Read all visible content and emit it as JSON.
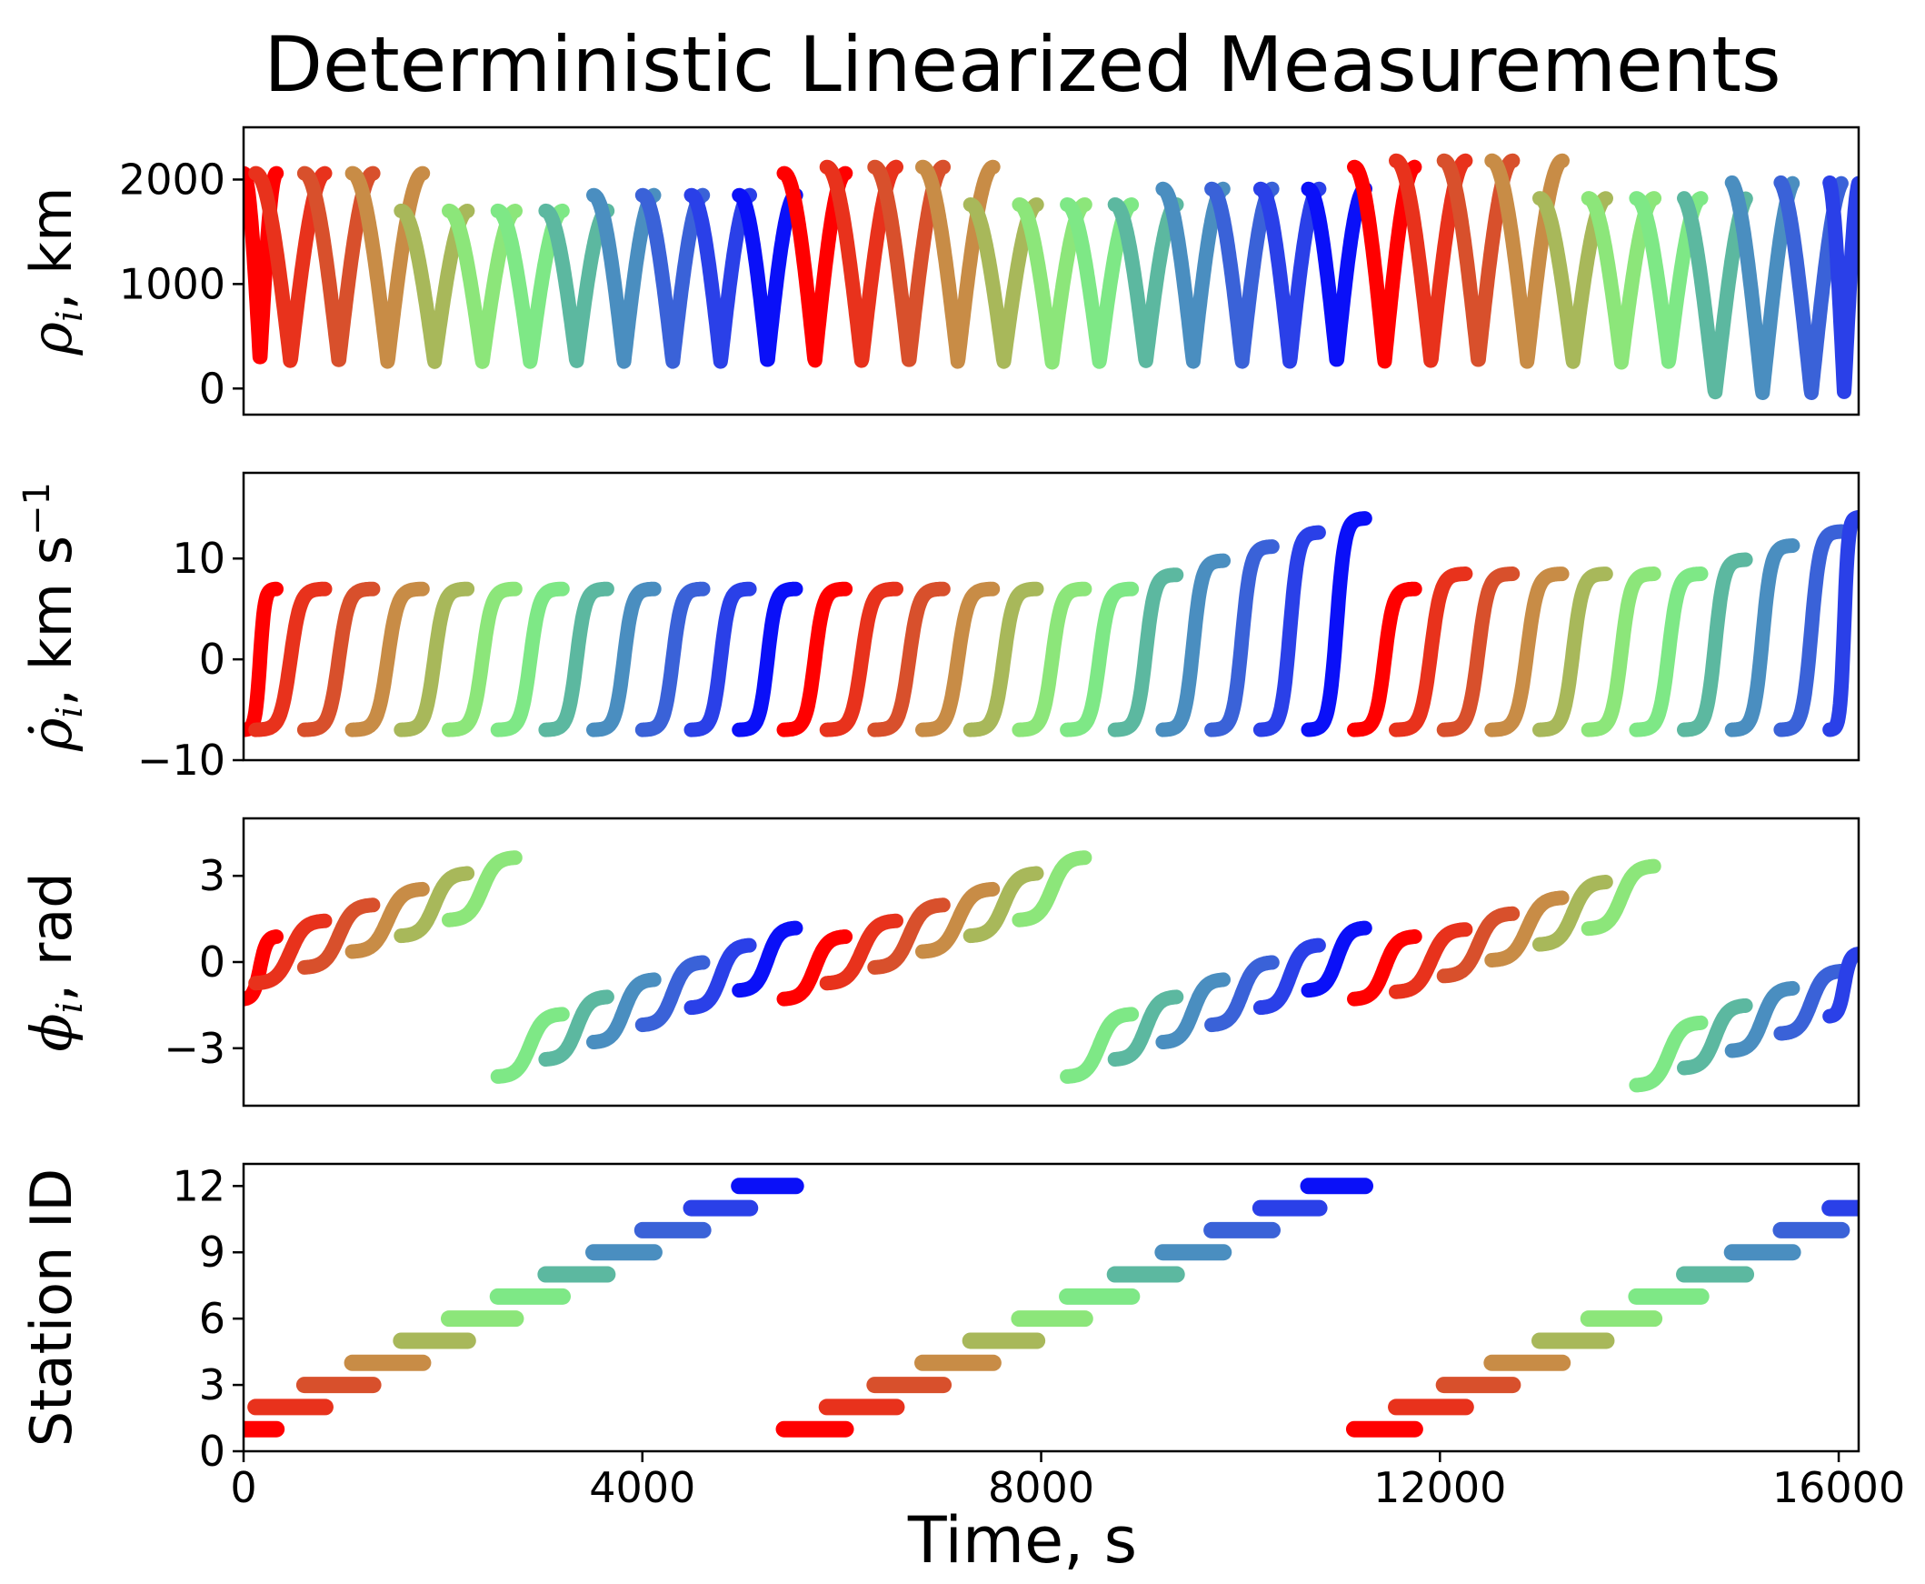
{
  "chart_data": {
    "type": "scatter",
    "title": "Deterministic Linearized Measurements",
    "xlabel": "Time, s",
    "xlim": [
      0,
      16200
    ],
    "xticks": [
      "0",
      "4000",
      "8000",
      "12000",
      "16000"
    ],
    "period_s": 5700,
    "stations": [
      {
        "id": 1,
        "color": "#ff0000"
      },
      {
        "id": 2,
        "color": "#e8321c"
      },
      {
        "id": 3,
        "color": "#d8502c"
      },
      {
        "id": 4,
        "color": "#c88c46"
      },
      {
        "id": 5,
        "color": "#a8b85a"
      },
      {
        "id": 6,
        "color": "#8ce67a"
      },
      {
        "id": 7,
        "color": "#7ee886"
      },
      {
        "id": 8,
        "color": "#5cb8a0"
      },
      {
        "id": 9,
        "color": "#4a8ec0"
      },
      {
        "id": 10,
        "color": "#3a62d8"
      },
      {
        "id": 11,
        "color": "#2a40e8"
      },
      {
        "id": 12,
        "color": "#0a10f8"
      }
    ],
    "panels": [
      {
        "key": "rho",
        "ylabel": {
          "sym": "ρ",
          "sub": "i",
          "tail": ", km"
        },
        "ylim": [
          -250,
          2500
        ],
        "yticks": [
          {
            "v": 0,
            "t": "0"
          },
          {
            "v": 1000,
            "t": "1000"
          },
          {
            "v": 2000,
            "t": "2000"
          }
        ]
      },
      {
        "key": "rhodot",
        "ylabel": {
          "sym": "ρ̇",
          "sub": "i",
          "tail": ", km s",
          "sup": "−1"
        },
        "ylim": [
          -10,
          18.5
        ],
        "yticks": [
          {
            "v": -10,
            "t": "−10"
          },
          {
            "v": 0,
            "t": "0"
          },
          {
            "v": 10,
            "t": "10"
          }
        ]
      },
      {
        "key": "phi",
        "ylabel": {
          "sym": "ϕ",
          "sub": "i",
          "tail": ", rad"
        },
        "ylim": [
          -5,
          5
        ],
        "yticks": [
          {
            "v": -3,
            "t": "−3"
          },
          {
            "v": 0,
            "t": "0"
          },
          {
            "v": 3,
            "t": "3"
          }
        ]
      },
      {
        "key": "id",
        "ylabel": {
          "sym": "",
          "sub": "",
          "tail": "Station ID"
        },
        "ylim": [
          0,
          13
        ],
        "yticks": [
          {
            "v": 0,
            "t": "0"
          },
          {
            "v": 3,
            "t": "3"
          },
          {
            "v": 6,
            "t": "6"
          },
          {
            "v": 9,
            "t": "9"
          },
          {
            "v": 12,
            "t": "12"
          }
        ]
      }
    ],
    "station_id_segments": [
      {
        "id": 1,
        "x": [
          0,
          330
        ]
      },
      {
        "id": 2,
        "x": [
          120,
          820
        ]
      },
      {
        "id": 3,
        "x": [
          610,
          1300
        ]
      },
      {
        "id": 4,
        "x": [
          1090,
          1800
        ]
      },
      {
        "id": 5,
        "x": [
          1580,
          2250
        ]
      },
      {
        "id": 6,
        "x": [
          2060,
          2730
        ]
      },
      {
        "id": 7,
        "x": [
          2550,
          3200
        ]
      },
      {
        "id": 8,
        "x": [
          3030,
          3650
        ]
      },
      {
        "id": 9,
        "x": [
          3510,
          4120
        ]
      },
      {
        "id": 10,
        "x": [
          4000,
          4610
        ]
      },
      {
        "id": 11,
        "x": [
          4490,
          5080
        ]
      },
      {
        "id": 12,
        "x": [
          4970,
          5540
        ]
      },
      {
        "id": 1,
        "x": [
          5420,
          6040
        ]
      },
      {
        "id": 2,
        "x": [
          5850,
          6550
        ]
      },
      {
        "id": 3,
        "x": [
          6330,
          7020
        ]
      },
      {
        "id": 4,
        "x": [
          6810,
          7520
        ]
      },
      {
        "id": 5,
        "x": [
          7290,
          7960
        ]
      },
      {
        "id": 6,
        "x": [
          7780,
          8440
        ]
      },
      {
        "id": 7,
        "x": [
          8260,
          8910
        ]
      },
      {
        "id": 8,
        "x": [
          8740,
          9360
        ]
      },
      {
        "id": 9,
        "x": [
          9220,
          9830
        ]
      },
      {
        "id": 10,
        "x": [
          9710,
          10320
        ]
      },
      {
        "id": 11,
        "x": [
          10200,
          10790
        ]
      },
      {
        "id": 12,
        "x": [
          10680,
          11250
        ]
      },
      {
        "id": 1,
        "x": [
          11140,
          11750
        ]
      },
      {
        "id": 2,
        "x": [
          11560,
          12260
        ]
      },
      {
        "id": 3,
        "x": [
          12040,
          12730
        ]
      },
      {
        "id": 4,
        "x": [
          12520,
          13230
        ]
      },
      {
        "id": 5,
        "x": [
          13000,
          13670
        ]
      },
      {
        "id": 6,
        "x": [
          13490,
          14150
        ]
      },
      {
        "id": 7,
        "x": [
          13970,
          14620
        ]
      },
      {
        "id": 8,
        "x": [
          14450,
          15070
        ]
      },
      {
        "id": 9,
        "x": [
          14930,
          15540
        ]
      },
      {
        "id": 10,
        "x": [
          15420,
          16030
        ]
      },
      {
        "id": 11,
        "x": [
          15910,
          16200
        ]
      }
    ]
  }
}
